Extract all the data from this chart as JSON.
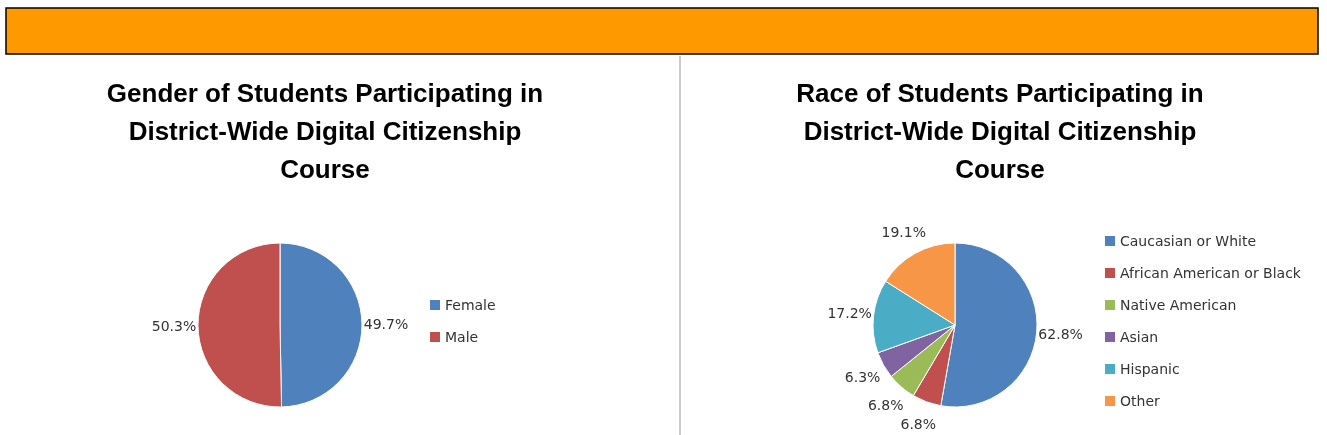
{
  "chart_data": [
    {
      "type": "pie",
      "title": "Gender of Students Participating in District-Wide Digital Citizenship Course",
      "categories": [
        "Female",
        "Male"
      ],
      "values": [
        49.7,
        50.3
      ],
      "value_labels": [
        "49.7%",
        "50.3%"
      ],
      "colors": [
        "#4f81bd",
        "#c0504d"
      ],
      "legend": "right"
    },
    {
      "type": "pie",
      "title": "Race of Students Participating in District-Wide Digital Citizenship Course",
      "categories": [
        "Caucasian or White",
        "African American or Black",
        "Native American",
        "Asian",
        "Hispanic",
        "Other"
      ],
      "values": [
        62.8,
        6.8,
        6.8,
        6.3,
        17.2,
        19.1
      ],
      "value_labels": [
        "62.8%",
        "6.8%",
        "6.8%",
        "6.3%",
        "17.2%",
        "19.1%"
      ],
      "colors": [
        "#4f81bd",
        "#c0504d",
        "#9bbb59",
        "#8064a2",
        "#4bacc6",
        "#f79646"
      ],
      "legend": "right"
    }
  ]
}
